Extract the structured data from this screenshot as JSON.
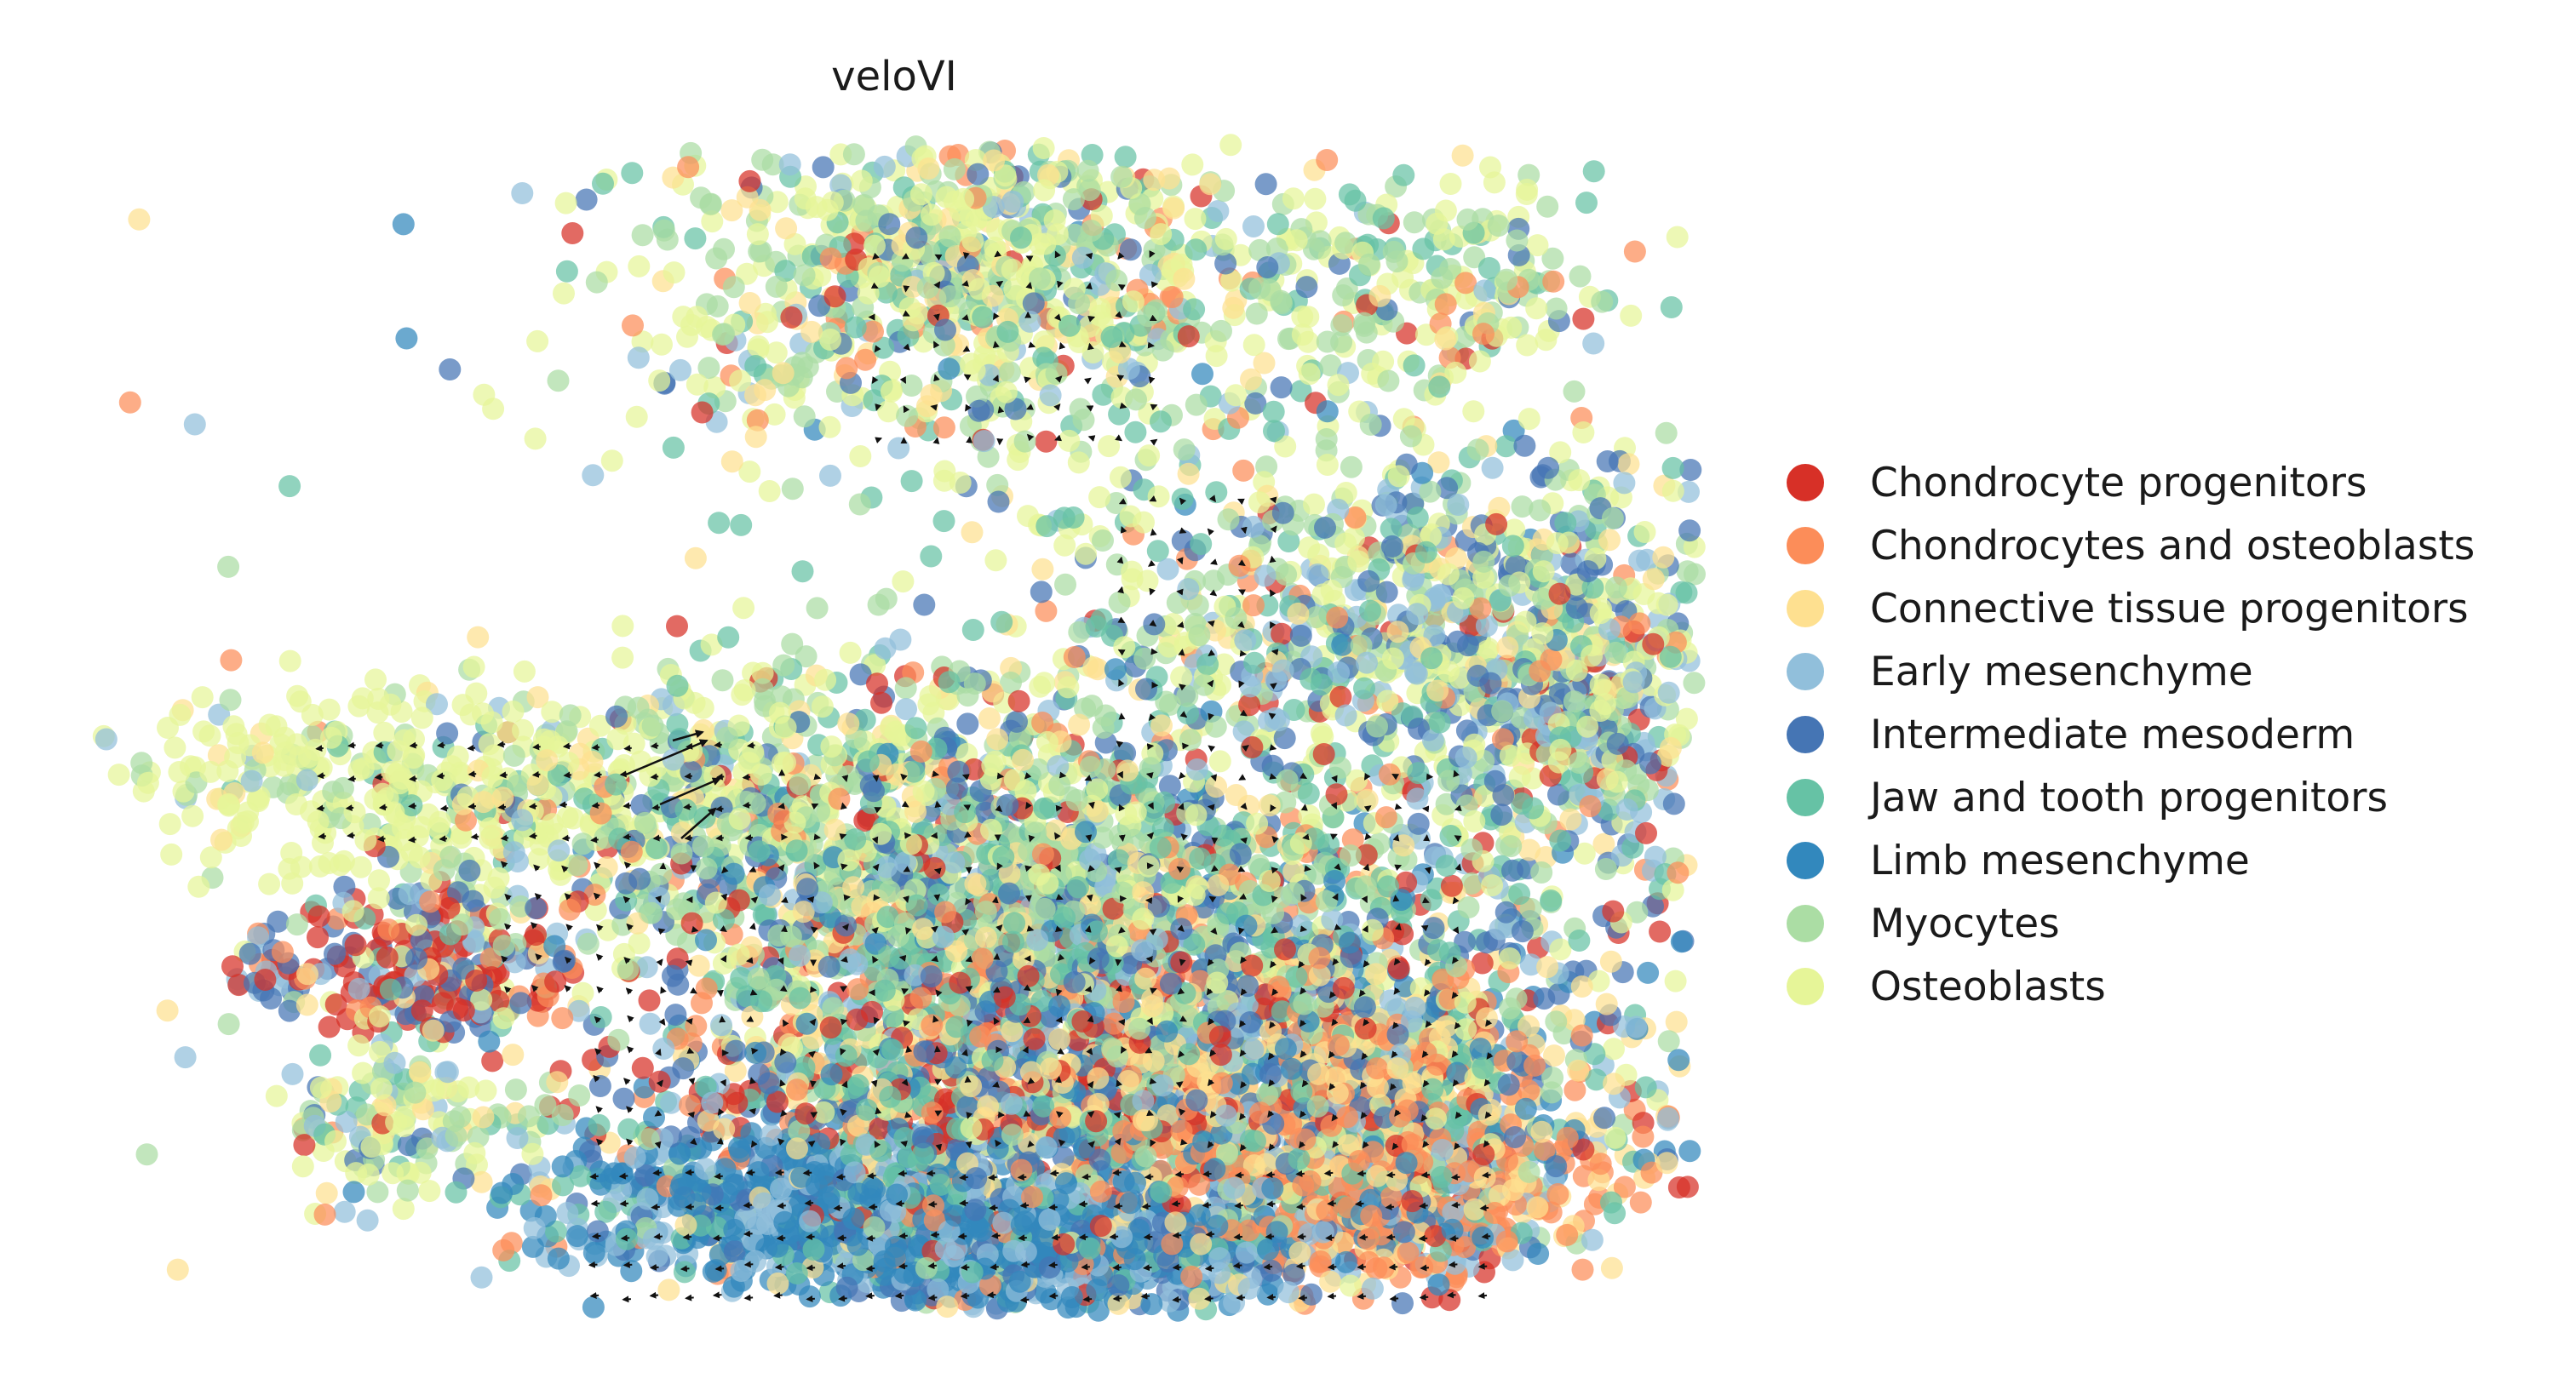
{
  "chart_data": {
    "type": "scatter",
    "title": "veloVI",
    "xlabel": "",
    "ylabel": "",
    "axes_visible": false,
    "grid": false,
    "legend_placement": "right",
    "overlay": "velocity stream arrows",
    "series": [
      {
        "name": "Chondrocyte progenitors",
        "color": "#d73027"
      },
      {
        "name": "Chondrocytes and osteoblasts",
        "color": "#fc8d59"
      },
      {
        "name": "Connective tissue progenitors",
        "color": "#fee090"
      },
      {
        "name": "Early mesenchyme",
        "color": "#91bfdb"
      },
      {
        "name": "Intermediate mesoderm",
        "color": "#4575b4"
      },
      {
        "name": "Jaw and tooth progenitors",
        "color": "#66c2a5"
      },
      {
        "name": "Limb mesenchyme",
        "color": "#3288bd"
      },
      {
        "name": "Myocytes",
        "color": "#abdda4"
      },
      {
        "name": "Osteoblasts",
        "color": "#e6f598"
      }
    ]
  }
}
